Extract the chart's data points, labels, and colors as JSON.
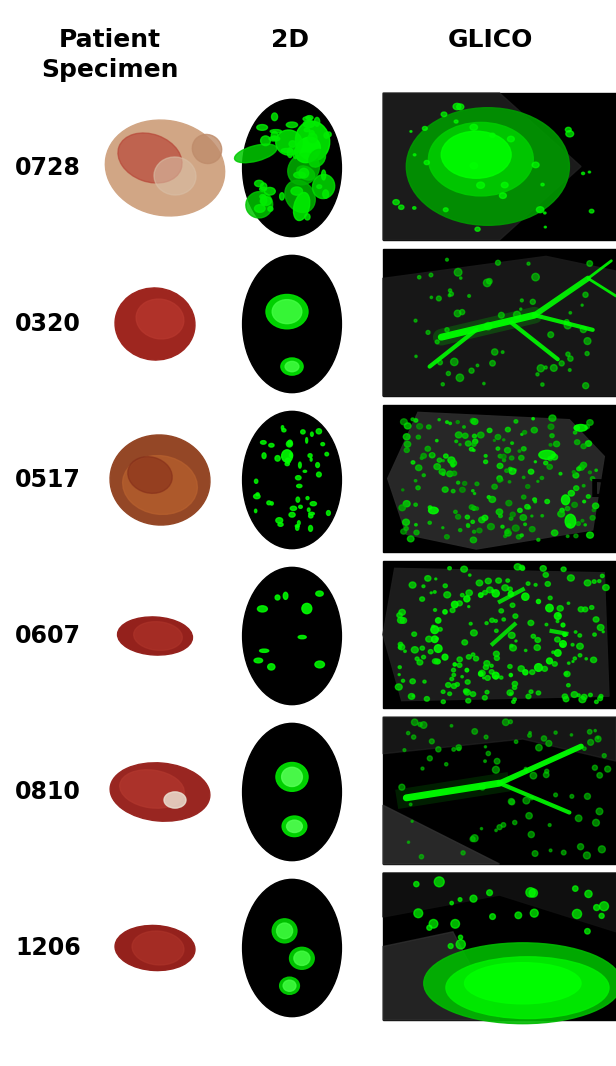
{
  "background_color": "#ffffff",
  "col_headers": [
    "Patient\nSpecimen",
    "2D",
    "GLICO"
  ],
  "col_header_fontsize": 18,
  "col_header_fontweight": "bold",
  "row_labels": [
    "0728",
    "0320",
    "0517",
    "0607",
    "0810",
    "1206"
  ],
  "row_label_fontsize": 17,
  "row_label_fontweight": "bold",
  "n_rows": 6,
  "D_label_fontsize": 18,
  "D_label_fontweight": "bold",
  "figsize": [
    6.16,
    10.66
  ],
  "dpi": 100
}
